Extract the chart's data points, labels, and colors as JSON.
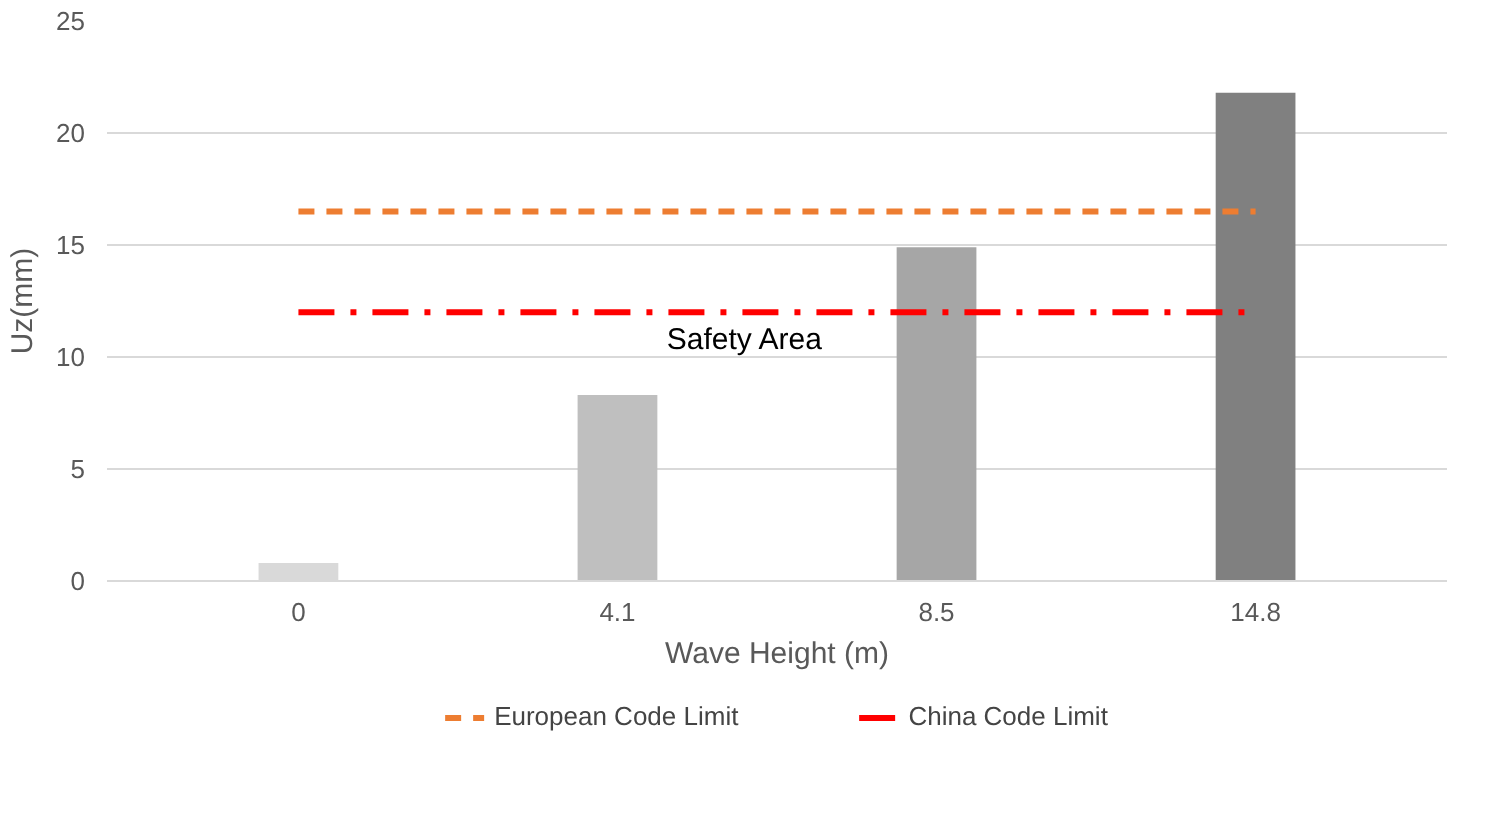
{
  "chart_data": {
    "type": "bar",
    "xlabel": "Wave Height (m)",
    "ylabel": "Uz(mm)",
    "categories": [
      "0",
      "4.1",
      "8.5",
      "14.8"
    ],
    "values": [
      0.8,
      8.3,
      14.9,
      21.8
    ],
    "colors": [
      "#d9d9d9",
      "#bfbfbf",
      "#a6a6a6",
      "#808080"
    ],
    "ylim": [
      0,
      25
    ],
    "yticks": [
      0,
      5,
      10,
      15,
      20,
      25
    ],
    "grid": "y",
    "legend": "bottom",
    "ref_lines": [
      {
        "axis": "y",
        "value": 16.5,
        "label": "European Code Limit",
        "color": "#ed7d31",
        "line_style": "dashed"
      },
      {
        "axis": "y",
        "value": 12,
        "label": "China Code Limit",
        "color": "#ff0000",
        "line_style": "dashdot"
      }
    ],
    "annotations": [
      "Safety Area"
    ]
  }
}
